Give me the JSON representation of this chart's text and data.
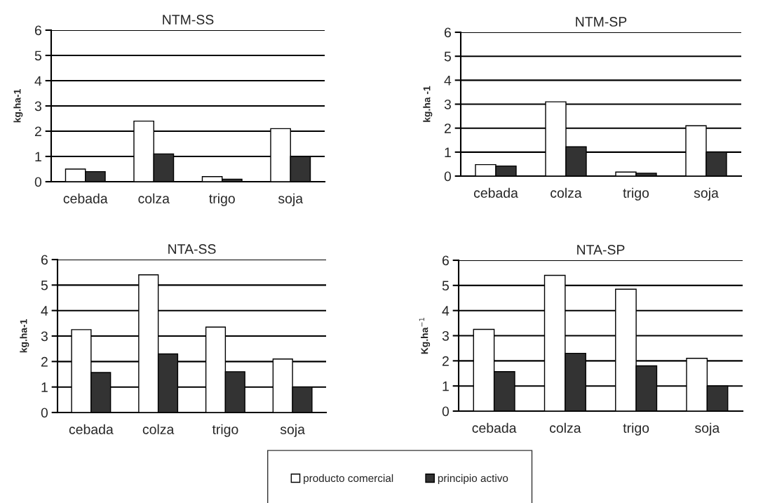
{
  "chart_data": [
    {
      "type": "bar",
      "title": "NTM-SS",
      "ylabel": "kg.ha-1",
      "categories": [
        "cebada",
        "colza",
        "trigo",
        "soja"
      ],
      "ylim": [
        0,
        6
      ],
      "yticks": [
        0,
        1,
        2,
        3,
        4,
        5,
        6
      ],
      "grid": "y",
      "series": [
        {
          "color": "#ffffff",
          "values": [
            0.5,
            2.4,
            0.2,
            2.1
          ]
        },
        {
          "color": "#333333",
          "values": [
            0.4,
            1.1,
            0.1,
            1.0
          ]
        }
      ]
    },
    {
      "type": "bar",
      "title": "NTM-SP",
      "ylabel": "kg.ha -1",
      "categories": [
        "cebada",
        "colza",
        "trigo",
        "soja"
      ],
      "ylim": [
        0,
        6
      ],
      "yticks": [
        0,
        1,
        2,
        3,
        4,
        5,
        6
      ],
      "grid": "y",
      "series": [
        {
          "color": "#ffffff",
          "values": [
            0.48,
            3.1,
            0.17,
            2.1
          ]
        },
        {
          "color": "#333333",
          "values": [
            0.42,
            1.22,
            0.12,
            1.0
          ]
        }
      ]
    },
    {
      "type": "bar",
      "title": "NTA-SS",
      "ylabel": "kg.ha-1",
      "categories": [
        "cebada",
        "colza",
        "trigo",
        "soja"
      ],
      "ylim": [
        0,
        6
      ],
      "yticks": [
        0,
        1,
        2,
        3,
        4,
        5,
        6
      ],
      "grid": "y",
      "series": [
        {
          "color": "#ffffff",
          "values": [
            3.25,
            5.4,
            3.35,
            2.1
          ]
        },
        {
          "color": "#333333",
          "values": [
            1.57,
            2.3,
            1.6,
            1.0
          ]
        }
      ]
    },
    {
      "type": "bar",
      "title": "NTA-SP",
      "ylabel": "Kg.ha$^{−1}$",
      "categories": [
        "cebada",
        "colza",
        "trigo",
        "soja"
      ],
      "ylim": [
        0,
        6
      ],
      "yticks": [
        0,
        1,
        2,
        3,
        4,
        5,
        6
      ],
      "grid": "y",
      "legend": "bottom",
      "series": [
        {
          "name": "producto comercial",
          "color": "#ffffff",
          "values": [
            3.25,
            5.4,
            4.85,
            2.1
          ]
        },
        {
          "name": "principio activo",
          "color": "#333333",
          "values": [
            1.57,
            2.3,
            1.8,
            1.0
          ]
        }
      ]
    }
  ]
}
